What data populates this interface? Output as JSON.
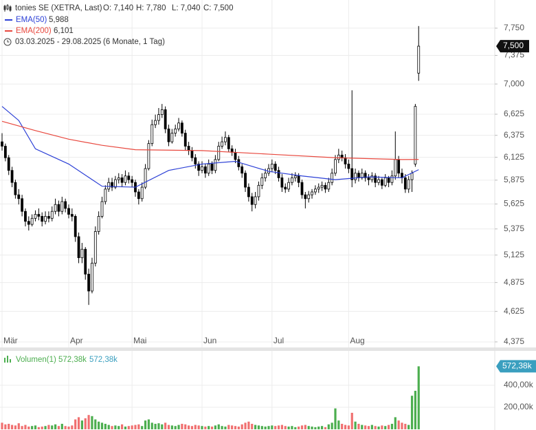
{
  "chart_data": [
    {
      "type": "candlestick",
      "title": "tonies SE (XETRA, Last)",
      "header_values": [
        "O: 7,140",
        "H: 7,780",
        "L: 7,040",
        "C: 7,500"
      ],
      "range_text": "03.03.2025 - 29.08.2025",
      "period_text": "(6 Monate, 1 Tag)",
      "close_label": "7,500",
      "log": true,
      "grid": true,
      "up_color": "#ffffff",
      "down_color": "#000000",
      "wick_color": "#000000",
      "xlim": [
        -0.62,
        147.84
      ],
      "xticks": [
        {
          "value": 0,
          "label": "Mär"
        },
        {
          "value": 20,
          "label": "Apr"
        },
        {
          "value": 39,
          "label": "Mai"
        },
        {
          "value": 60,
          "label": "Jun"
        },
        {
          "value": 81,
          "label": "Jul"
        },
        {
          "value": 104,
          "label": "Aug"
        }
      ],
      "ylim": [
        4.331,
        8.158
      ],
      "yticks": [
        {
          "value": 4.375,
          "label": "4,375"
        },
        {
          "value": 4.625,
          "label": "4,625"
        },
        {
          "value": 4.875,
          "label": "4,875"
        },
        {
          "value": 5.125,
          "label": "5,125"
        },
        {
          "value": 5.375,
          "label": "5,375"
        },
        {
          "value": 5.625,
          "label": "5,625"
        },
        {
          "value": 5.875,
          "label": "5,875"
        },
        {
          "value": 6.125,
          "label": "6,125"
        },
        {
          "value": 6.375,
          "label": "6,375"
        },
        {
          "value": 6.625,
          "label": "6,625"
        },
        {
          "value": 7,
          "label": "7,000"
        },
        {
          "value": 7.375,
          "label": "7,375"
        },
        {
          "value": 7.75,
          "label": "7,750"
        }
      ],
      "candles": [
        [
          6.3,
          6.4,
          6.2,
          6.25
        ],
        [
          6.25,
          6.28,
          6.08,
          6.12
        ],
        [
          6.12,
          6.15,
          5.93,
          5.98
        ],
        [
          5.98,
          6.02,
          5.8,
          5.85
        ],
        [
          5.85,
          5.88,
          5.68,
          5.72
        ],
        [
          5.72,
          5.78,
          5.62,
          5.68
        ],
        [
          5.68,
          5.72,
          5.5,
          5.55
        ],
        [
          5.55,
          5.58,
          5.4,
          5.45
        ],
        [
          5.45,
          5.5,
          5.36,
          5.42
        ],
        [
          5.42,
          5.52,
          5.4,
          5.48
        ],
        [
          5.48,
          5.56,
          5.45,
          5.52
        ],
        [
          5.52,
          5.58,
          5.46,
          5.5
        ],
        [
          5.5,
          5.54,
          5.4,
          5.45
        ],
        [
          5.45,
          5.55,
          5.42,
          5.5
        ],
        [
          5.5,
          5.55,
          5.44,
          5.48
        ],
        [
          5.48,
          5.6,
          5.45,
          5.55
        ],
        [
          5.55,
          5.68,
          5.52,
          5.62
        ],
        [
          5.62,
          5.66,
          5.5,
          5.55
        ],
        [
          5.55,
          5.7,
          5.52,
          5.65
        ],
        [
          5.65,
          5.68,
          5.54,
          5.58
        ],
        [
          5.58,
          5.62,
          5.48,
          5.52
        ],
        [
          5.52,
          5.58,
          5.45,
          5.5
        ],
        [
          5.5,
          5.52,
          5.25,
          5.3
        ],
        [
          5.3,
          5.34,
          5.05,
          5.1
        ],
        [
          5.1,
          5.24,
          5.05,
          5.18
        ],
        [
          5.18,
          5.2,
          4.9,
          4.95
        ],
        [
          4.95,
          5.0,
          4.68,
          4.8
        ],
        [
          4.8,
          5.1,
          4.78,
          5.05
        ],
        [
          5.05,
          5.4,
          5.02,
          5.35
        ],
        [
          5.35,
          5.55,
          5.32,
          5.5
        ],
        [
          5.5,
          5.7,
          5.48,
          5.65
        ],
        [
          5.65,
          5.82,
          5.62,
          5.78
        ],
        [
          5.78,
          5.9,
          5.75,
          5.85
        ],
        [
          5.85,
          5.9,
          5.76,
          5.8
        ],
        [
          5.8,
          5.92,
          5.78,
          5.88
        ],
        [
          5.88,
          5.95,
          5.84,
          5.9
        ],
        [
          5.9,
          5.94,
          5.8,
          5.85
        ],
        [
          5.85,
          5.98,
          5.82,
          5.92
        ],
        [
          5.92,
          5.96,
          5.84,
          5.88
        ],
        [
          5.88,
          5.92,
          5.8,
          5.85
        ],
        [
          5.85,
          5.88,
          5.7,
          5.75
        ],
        [
          5.75,
          5.78,
          5.62,
          5.68
        ],
        [
          5.68,
          5.85,
          5.65,
          5.8
        ],
        [
          5.8,
          6.05,
          5.78,
          6.0
        ],
        [
          6.0,
          6.32,
          5.98,
          6.28
        ],
        [
          6.28,
          6.56,
          6.25,
          6.5
        ],
        [
          6.5,
          6.62,
          6.46,
          6.55
        ],
        [
          6.55,
          6.7,
          6.5,
          6.62
        ],
        [
          6.62,
          6.75,
          6.58,
          6.68
        ],
        [
          6.68,
          6.72,
          6.4,
          6.45
        ],
        [
          6.45,
          6.5,
          6.25,
          6.3
        ],
        [
          6.3,
          6.45,
          6.28,
          6.4
        ],
        [
          6.4,
          6.5,
          6.36,
          6.45
        ],
        [
          6.45,
          6.58,
          6.42,
          6.52
        ],
        [
          6.52,
          6.55,
          6.36,
          6.4
        ],
        [
          6.4,
          6.44,
          6.2,
          6.25
        ],
        [
          6.25,
          6.3,
          6.15,
          6.2
        ],
        [
          6.2,
          6.24,
          6.08,
          6.12
        ],
        [
          6.12,
          6.16,
          6.0,
          6.05
        ],
        [
          6.05,
          6.08,
          5.92,
          5.98
        ],
        [
          5.98,
          6.08,
          5.95,
          6.02
        ],
        [
          6.02,
          6.05,
          5.9,
          5.95
        ],
        [
          5.95,
          6.1,
          5.92,
          6.05
        ],
        [
          6.05,
          6.08,
          5.94,
          5.98
        ],
        [
          5.98,
          6.15,
          5.95,
          6.1
        ],
        [
          6.1,
          6.3,
          6.08,
          6.25
        ],
        [
          6.25,
          6.36,
          6.22,
          6.3
        ],
        [
          6.3,
          6.42,
          6.26,
          6.35
        ],
        [
          6.35,
          6.38,
          6.18,
          6.22
        ],
        [
          6.22,
          6.26,
          6.14,
          6.18
        ],
        [
          6.18,
          6.22,
          6.06,
          6.1
        ],
        [
          6.1,
          6.14,
          5.98,
          6.02
        ],
        [
          6.02,
          6.05,
          5.9,
          5.95
        ],
        [
          5.95,
          5.98,
          5.75,
          5.8
        ],
        [
          5.8,
          5.84,
          5.65,
          5.7
        ],
        [
          5.7,
          5.74,
          5.55,
          5.62
        ],
        [
          5.62,
          5.75,
          5.58,
          5.7
        ],
        [
          5.7,
          5.86,
          5.66,
          5.82
        ],
        [
          5.82,
          5.95,
          5.78,
          5.9
        ],
        [
          5.9,
          6.0,
          5.86,
          5.95
        ],
        [
          5.95,
          6.05,
          5.92,
          6.0
        ],
        [
          6.0,
          6.1,
          5.96,
          6.05
        ],
        [
          6.05,
          6.08,
          5.94,
          5.98
        ],
        [
          5.98,
          6.02,
          5.86,
          5.9
        ],
        [
          5.9,
          5.94,
          5.75,
          5.8
        ],
        [
          5.8,
          5.84,
          5.74,
          5.78
        ],
        [
          5.78,
          5.9,
          5.75,
          5.85
        ],
        [
          5.85,
          5.95,
          5.82,
          5.9
        ],
        [
          5.9,
          5.96,
          5.86,
          5.92
        ],
        [
          5.92,
          5.95,
          5.8,
          5.85
        ],
        [
          5.85,
          5.88,
          5.68,
          5.72
        ],
        [
          5.72,
          5.75,
          5.58,
          5.68
        ],
        [
          5.68,
          5.76,
          5.64,
          5.72
        ],
        [
          5.72,
          5.78,
          5.68,
          5.75
        ],
        [
          5.75,
          5.82,
          5.72,
          5.78
        ],
        [
          5.78,
          5.84,
          5.74,
          5.8
        ],
        [
          5.8,
          5.86,
          5.76,
          5.82
        ],
        [
          5.82,
          5.85,
          5.74,
          5.78
        ],
        [
          5.78,
          5.9,
          5.75,
          5.85
        ],
        [
          5.85,
          6.0,
          5.82,
          5.95
        ],
        [
          5.95,
          6.15,
          5.92,
          6.1
        ],
        [
          6.1,
          6.22,
          6.06,
          6.15
        ],
        [
          6.15,
          6.2,
          6.08,
          6.12
        ],
        [
          6.12,
          6.16,
          6.0,
          6.05
        ],
        [
          6.05,
          6.1,
          5.95,
          6.0
        ],
        [
          6.0,
          6.92,
          5.8,
          5.88
        ],
        [
          5.88,
          6.0,
          5.84,
          5.95
        ],
        [
          5.95,
          5.98,
          5.86,
          5.9
        ],
        [
          5.9,
          6.0,
          5.88,
          5.95
        ],
        [
          5.95,
          5.98,
          5.86,
          5.9
        ],
        [
          5.9,
          5.94,
          5.82,
          5.88
        ],
        [
          5.88,
          5.96,
          5.85,
          5.92
        ],
        [
          5.92,
          5.95,
          5.8,
          5.85
        ],
        [
          5.85,
          5.92,
          5.82,
          5.88
        ],
        [
          5.88,
          5.9,
          5.78,
          5.82
        ],
        [
          5.82,
          5.94,
          5.8,
          5.9
        ],
        [
          5.9,
          5.92,
          5.8,
          5.85
        ],
        [
          5.85,
          5.98,
          5.82,
          5.92
        ],
        [
          5.92,
          6.42,
          5.88,
          6.1
        ],
        [
          6.1,
          6.14,
          5.9,
          5.95
        ],
        [
          5.95,
          6.0,
          5.84,
          5.9
        ],
        [
          5.9,
          5.94,
          5.74,
          5.78
        ],
        [
          5.78,
          5.92,
          5.74,
          5.88
        ],
        [
          5.88,
          5.98,
          5.75,
          5.95
        ],
        [
          6.05,
          6.75,
          6.02,
          6.72
        ],
        [
          7.14,
          7.78,
          7.04,
          7.5
        ]
      ],
      "series": [
        {
          "name": "EMA(50)",
          "color": "#2b3fd6",
          "last_label": "5,988",
          "x": [
            0,
            5,
            10,
            20,
            30,
            40,
            50,
            60,
            70,
            80,
            90,
            100,
            110,
            120,
            125
          ],
          "values": [
            6.72,
            6.55,
            6.22,
            6.05,
            5.81,
            5.8,
            5.98,
            6.05,
            6.08,
            5.97,
            5.92,
            5.88,
            5.91,
            5.9,
            5.988
          ]
        },
        {
          "name": "EMA(200)",
          "color": "#e8473d",
          "last_label": "6,101",
          "x": [
            0,
            10,
            20,
            30,
            40,
            60,
            80,
            100,
            120,
            125
          ],
          "values": [
            6.54,
            6.43,
            6.33,
            6.26,
            6.21,
            6.2,
            6.16,
            6.12,
            6.1,
            6.101
          ]
        }
      ]
    },
    {
      "type": "bar",
      "name": "Volumen(1)",
      "last_label": "572,38k",
      "up_color": "#4cae4f",
      "down_color": "#f07070",
      "label_color": "#3a9fbf",
      "ylim": [
        0,
        712500
      ],
      "yticks": [
        {
          "value": 200000,
          "label": "200,00k"
        },
        {
          "value": 400000,
          "label": "400,00k"
        }
      ],
      "values": [
        60000,
        45000,
        50000,
        40000,
        35000,
        55000,
        30000,
        40000,
        25000,
        30000,
        35000,
        20000,
        25000,
        30000,
        40000,
        35000,
        45000,
        30000,
        50000,
        30000,
        25000,
        35000,
        90000,
        110000,
        80000,
        100000,
        130000,
        120000,
        90000,
        70000,
        60000,
        50000,
        40000,
        30000,
        35000,
        30000,
        45000,
        25000,
        30000,
        35000,
        40000,
        45000,
        30000,
        80000,
        90000,
        60000,
        50000,
        55000,
        45000,
        60000,
        40000,
        35000,
        30000,
        40000,
        50000,
        45000,
        35000,
        30000,
        40000,
        35000,
        30000,
        25000,
        30000,
        25000,
        35000,
        45000,
        30000,
        25000,
        40000,
        35000,
        30000,
        25000,
        45000,
        60000,
        70000,
        50000,
        40000,
        35000,
        30000,
        25000,
        30000,
        35000,
        30000,
        35000,
        40000,
        30000,
        25000,
        30000,
        20000,
        25000,
        35000,
        40000,
        30000,
        25000,
        20000,
        25000,
        30000,
        20000,
        45000,
        60000,
        190000,
        80000,
        50000,
        40000,
        35000,
        150000,
        70000,
        50000,
        40000,
        35000,
        30000,
        40000,
        30000,
        25000,
        35000,
        30000,
        40000,
        50000,
        110000,
        80000,
        60000,
        50000,
        40000,
        305000,
        350000,
        572380
      ]
    }
  ]
}
